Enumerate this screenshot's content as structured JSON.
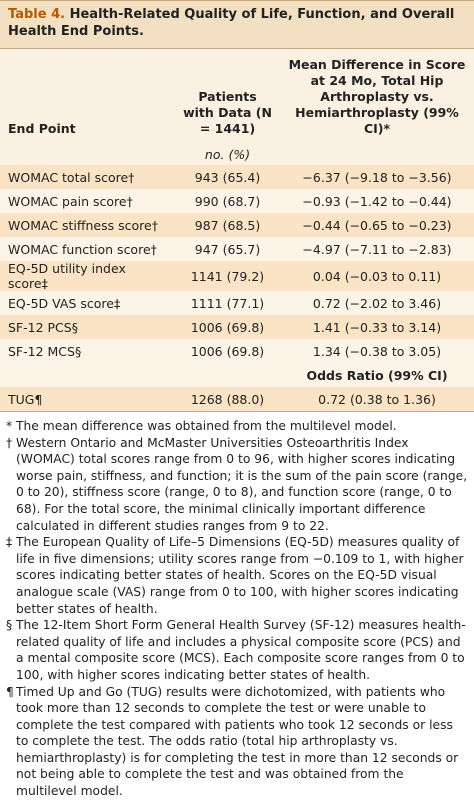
{
  "header": {
    "label": "Table 4.",
    "title": "Health-Related Quality of Life, Function, and Overall Health End Points."
  },
  "table": {
    "columns": [
      "End Point",
      "Patients with Data (N = 1441)",
      "Mean Difference in Score at 24 Mo, Total Hip Arthroplasty vs. Hemiarthroplasty (99% CI)*"
    ],
    "units": "no. (%)",
    "rows": [
      [
        "WOMAC total score†",
        "943 (65.4)",
        "−6.37 (−9.18 to −3.56)"
      ],
      [
        "WOMAC pain score†",
        "990 (68.7)",
        "−0.93 (−1.42 to −0.44)"
      ],
      [
        "WOMAC stiffness score†",
        "987 (68.5)",
        "−0.44 (−0.65 to −0.23)"
      ],
      [
        "WOMAC function score†",
        "947 (65.7)",
        "−4.97 (−7.11 to −2.83)"
      ],
      [
        "EQ-5D utility index score‡",
        "1141 (79.2)",
        "0.04 (−0.03 to 0.11)"
      ],
      [
        "EQ-5D VAS score‡",
        "1111 (77.1)",
        "0.72 (−2.02 to 3.46)"
      ],
      [
        "SF-12 PCS§",
        "1006 (69.8)",
        "1.41 (−0.33 to 3.14)"
      ],
      [
        "SF-12 MCS§",
        "1006 (69.8)",
        "1.34 (−0.38 to 3.05)"
      ]
    ],
    "subheader": "Odds Ratio (99% CI)",
    "rows2": [
      [
        "TUG¶",
        "1268 (88.0)",
        "0.72 (0.38 to 1.36)"
      ]
    ]
  },
  "footnotes": [
    {
      "symbol": "*",
      "text": "The mean difference was obtained from the multilevel model."
    },
    {
      "symbol": "†",
      "text": "Western Ontario and McMaster Universities Osteoarthritis Index (WOMAC) total scores range from 0 to 96, with higher scores indicating worse pain, stiffness, and function; it is the sum of the pain score (range, 0 to 20), stiffness score (range, 0 to 8), and function score (range, 0 to 68). For the total score, the minimal clinically important difference calculated in different studies ranges from 9 to 22."
    },
    {
      "symbol": "‡",
      "text": "The European Quality of Life–5 Dimensions (EQ-5D) measures quality of life in five dimensions; utility scores range from −0.109 to 1, with higher scores indicating better states of health. Scores on the EQ-5D visual analogue scale (VAS) range from 0 to 100, with higher scores indicating better states of health."
    },
    {
      "symbol": "§",
      "text": "The 12-Item Short Form General Health Survey (SF-12) measures health-related quality of life and includes a physical composite score (PCS) and a mental composite score (MCS). Each composite score ranges from 0 to 100, with higher scores indicating better states of health."
    },
    {
      "symbol": "¶",
      "text": "Timed Up and Go (TUG) results were dichotomized, with patients who took more than 12 seconds to complete the test or were unable to complete the test compared with patients who took 12 seconds or less to complete the test. The odds ratio (total hip arthroplasty vs. hemiarthroplasty) is for completing the test in more than 12 seconds or not being able to complete the test and was obtained from the multilevel model."
    }
  ]
}
